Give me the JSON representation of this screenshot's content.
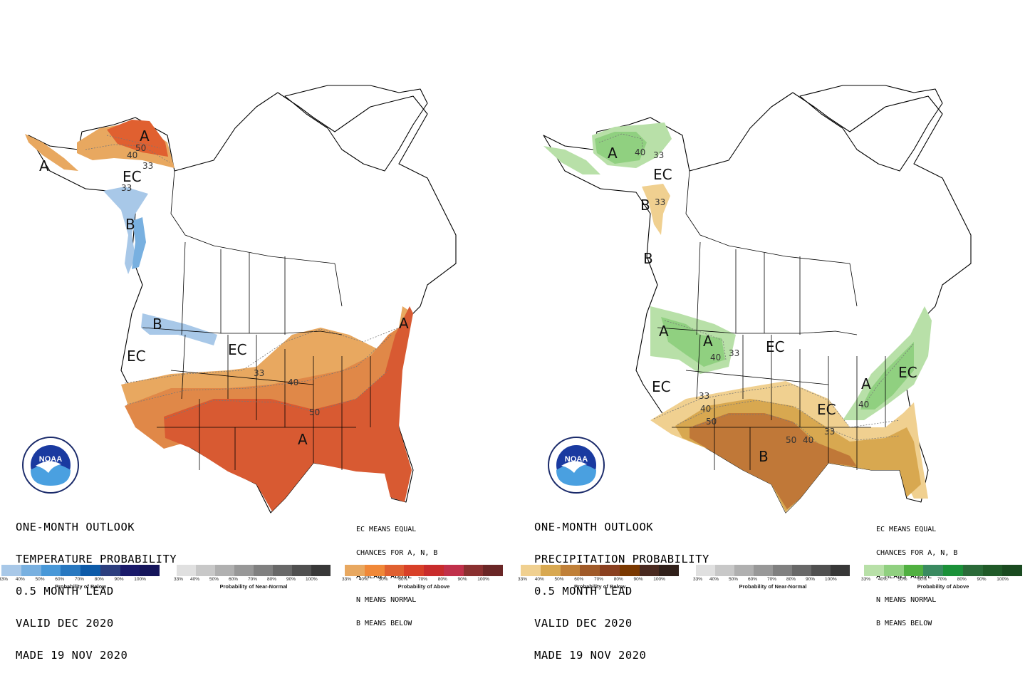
{
  "panels": [
    {
      "id": "temperature",
      "title_lines": [
        "ONE-MONTH OUTLOOK",
        "TEMPERATURE PROBABILITY",
        "0.5 MONTH LEAD",
        "VALID DEC 2020",
        "MADE 19 NOV 2020"
      ],
      "legend_lines": [
        "EC MEANS EQUAL",
        "CHANCES FOR A, N, B",
        "A MEANS ABOVE",
        "N MEANS NORMAL",
        "B MEANS BELOW"
      ],
      "logo_text": "NOAA",
      "region_labels": [
        "A",
        "EC",
        "B",
        "B",
        "EC",
        "EC",
        "A",
        "A",
        "A"
      ],
      "contour_labels": [
        "50",
        "40",
        "33",
        "33",
        "33",
        "40",
        "50"
      ],
      "colorbars": [
        {
          "caption": "Probability of Below",
          "colors": [
            "#a8c8e8",
            "#78b0e0",
            "#4898d8",
            "#2878c0",
            "#0c5aa8",
            "#2c3e7e",
            "#1a1a6a",
            "#14145a"
          ],
          "ticks": [
            "33%",
            "40%",
            "50%",
            "60%",
            "70%",
            "80%",
            "90%",
            "100%"
          ]
        },
        {
          "caption": "Probability of Near-Normal",
          "colors": [
            "#e0e0e0",
            "#c8c8c8",
            "#b0b0b0",
            "#989898",
            "#808080",
            "#686868",
            "#505050",
            "#383838"
          ],
          "ticks": [
            "33%",
            "40%",
            "50%",
            "60%",
            "70%",
            "80%",
            "90%",
            "100%"
          ]
        },
        {
          "caption": "Probability of Above",
          "colors": [
            "#e8a860",
            "#f08838",
            "#e06030",
            "#d84028",
            "#c82c2c",
            "#c0304a",
            "#8a3030",
            "#6a2626"
          ],
          "ticks": [
            "33%",
            "40%",
            "50%",
            "60%",
            "70%",
            "80%",
            "90%",
            "100%"
          ]
        }
      ]
    },
    {
      "id": "precipitation",
      "title_lines": [
        "ONE-MONTH OUTLOOK",
        "PRECIPITATION PROBABILITY",
        "0.5 MONTH LEAD",
        "VALID DEC 2020",
        "MADE 19 NOV 2020"
      ],
      "legend_lines": [
        "EC MEANS EQUAL",
        "CHANCES FOR A, N, B",
        "A MEANS ABOVE",
        "N MEANS NORMAL",
        "B MEANS BELOW"
      ],
      "logo_text": "NOAA",
      "region_labels": [
        "A",
        "EC",
        "B",
        "B",
        "A",
        "A",
        "EC",
        "EC",
        "EC",
        "A",
        "EC",
        "B"
      ],
      "contour_labels": [
        "40",
        "33",
        "33",
        "40",
        "33",
        "40",
        "50",
        "50",
        "40",
        "33",
        "33",
        "40"
      ],
      "colorbars": [
        {
          "caption": "Probability of Below",
          "colors": [
            "#f0d090",
            "#d8a850",
            "#c08038",
            "#a05a28",
            "#8a4020",
            "#7a3800",
            "#4a2a20",
            "#30201a"
          ],
          "ticks": [
            "33%",
            "40%",
            "50%",
            "60%",
            "70%",
            "80%",
            "90%",
            "100%"
          ]
        },
        {
          "caption": "Probability of Near-Normal",
          "colors": [
            "#e0e0e0",
            "#c8c8c8",
            "#b0b0b0",
            "#989898",
            "#808080",
            "#686868",
            "#505050",
            "#383838"
          ],
          "ticks": [
            "33%",
            "40%",
            "50%",
            "60%",
            "70%",
            "80%",
            "90%",
            "100%"
          ]
        },
        {
          "caption": "Probability of Above",
          "colors": [
            "#b8e0a8",
            "#90d080",
            "#50b040",
            "#3a8a60",
            "#1a9038",
            "#2a6a38",
            "#205a28",
            "#1a4a20"
          ],
          "ticks": [
            "33%",
            "40%",
            "50%",
            "60%",
            "70%",
            "80%",
            "90%",
            "100%"
          ]
        }
      ]
    }
  ]
}
